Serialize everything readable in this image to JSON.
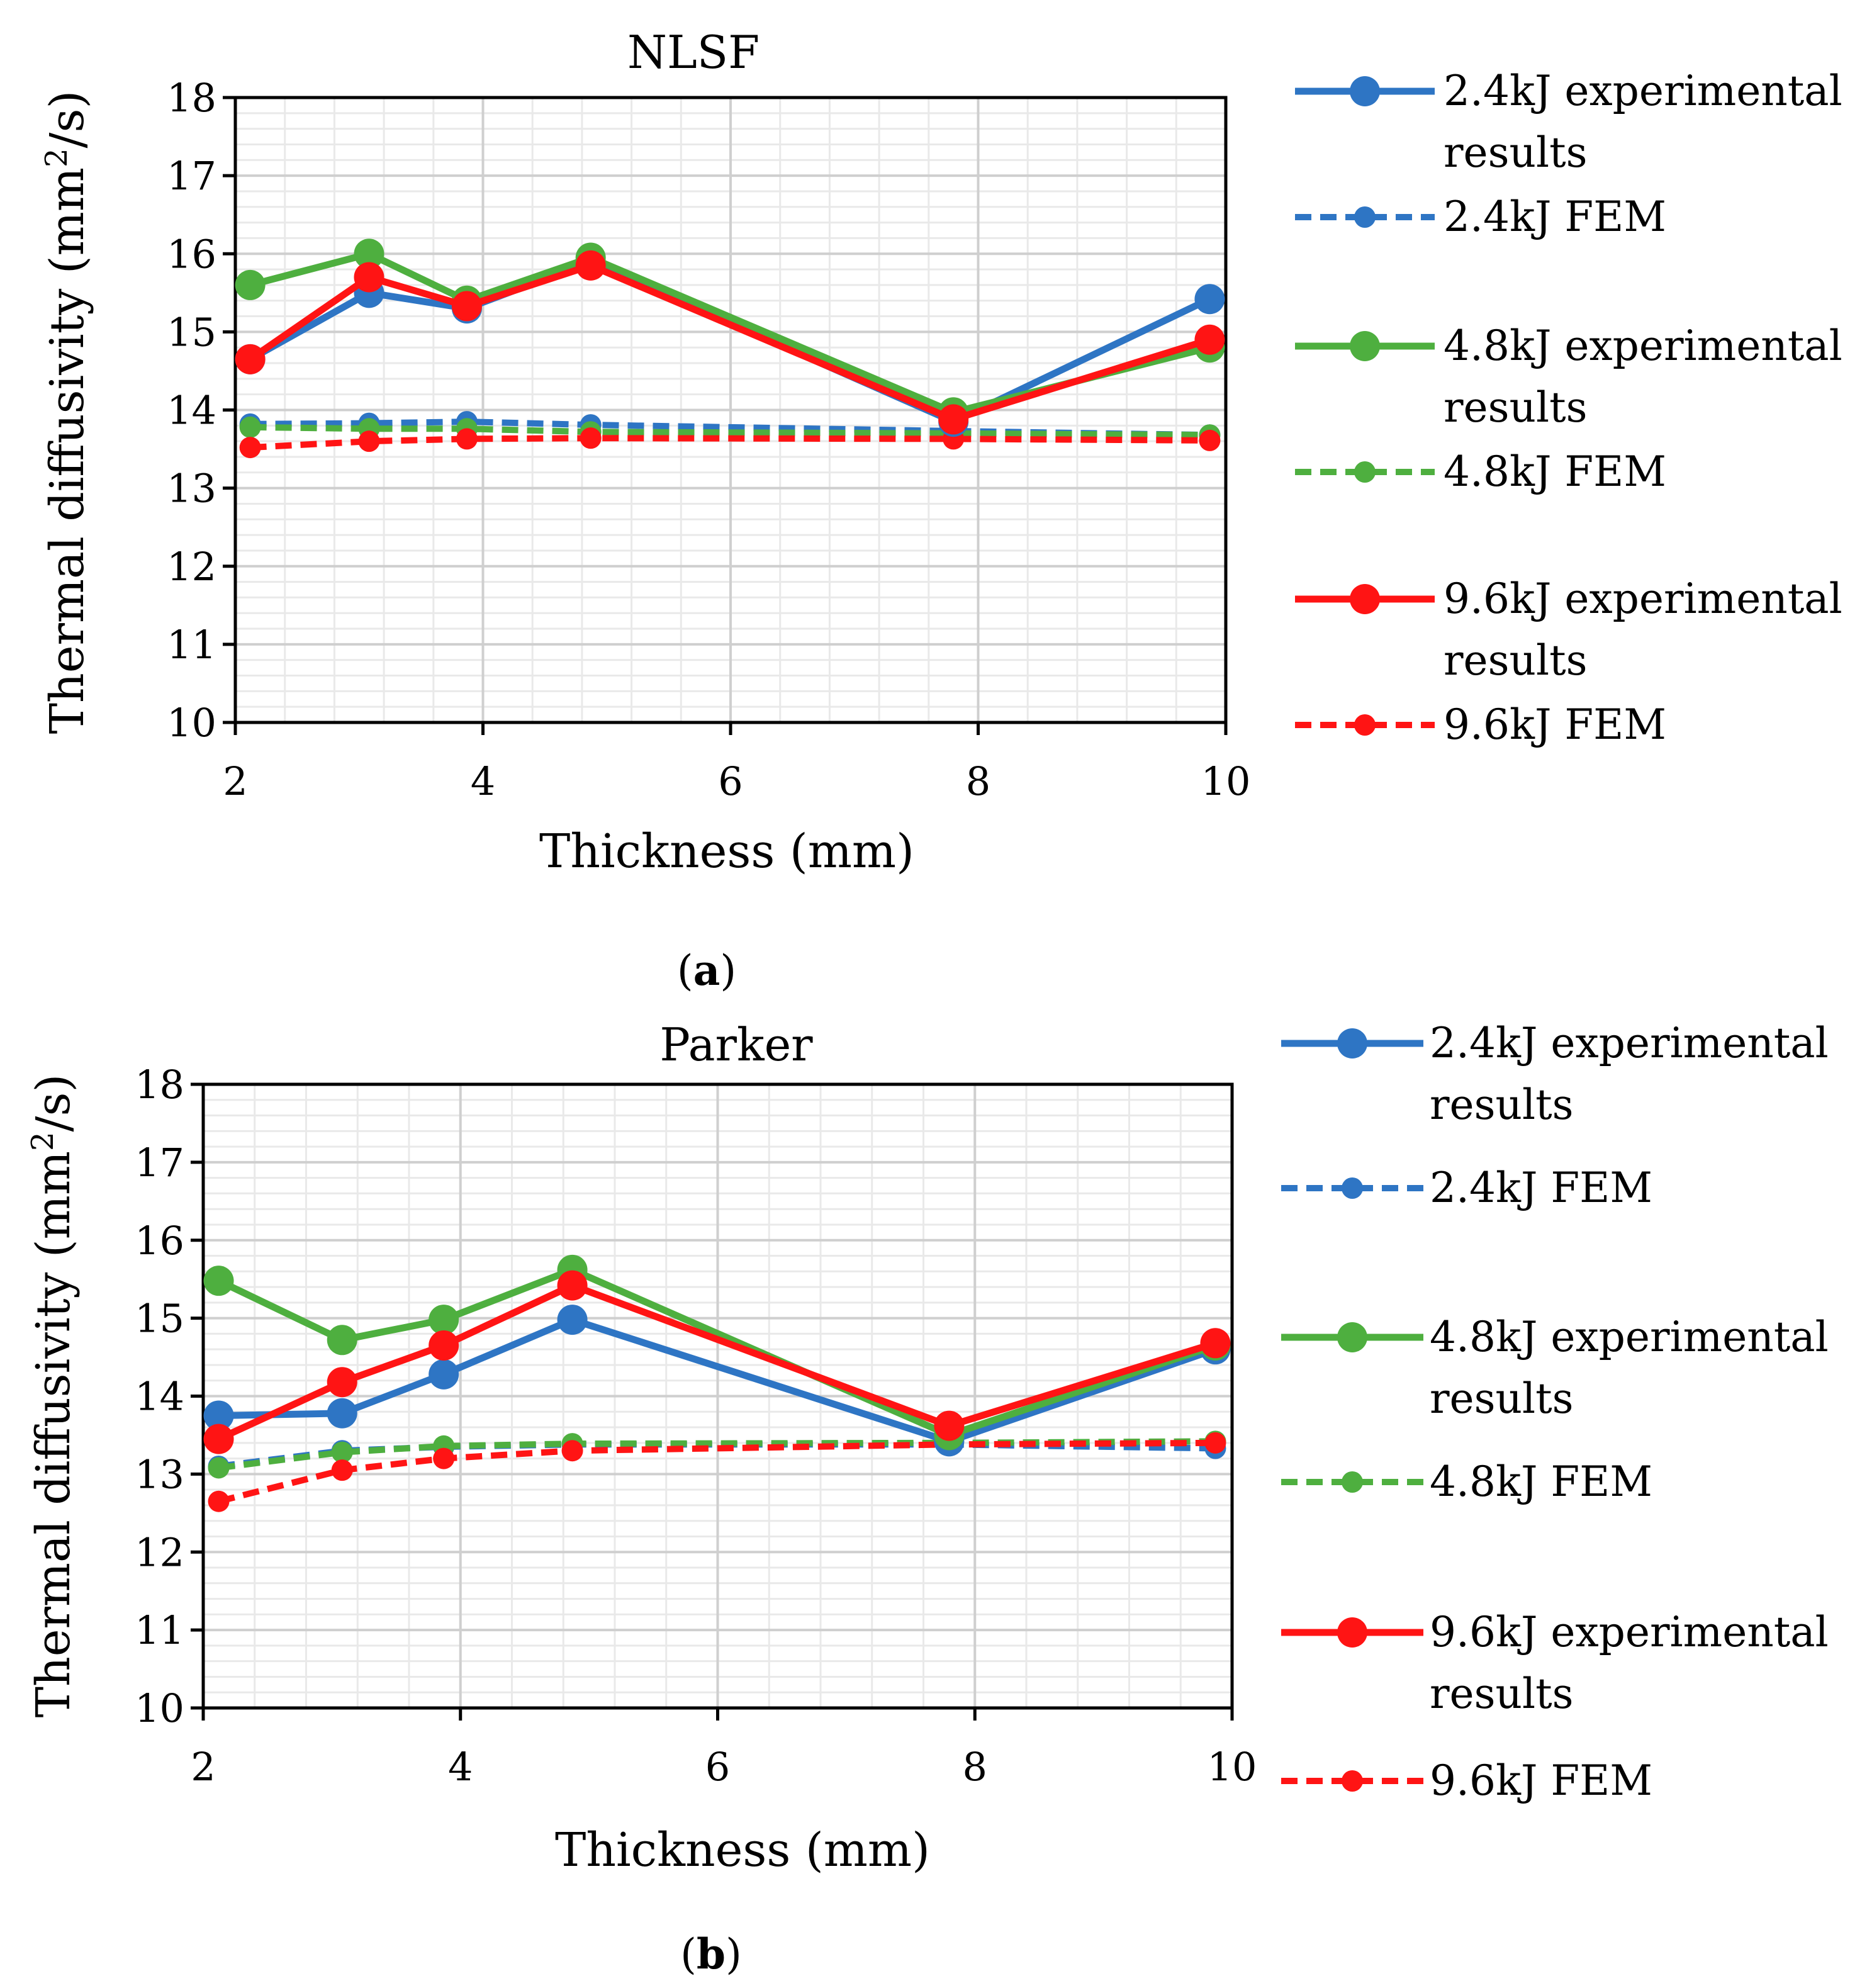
{
  "figure": {
    "caption_a_open": "(",
    "caption_a_letter": "a",
    "caption_a_close": ")",
    "caption_b_open": "(",
    "caption_b_letter": "b",
    "caption_b_close": ")"
  },
  "colors": {
    "blue": "#2E75C4",
    "green": "#4EAF3F",
    "red": "#FF1414",
    "major_grid": "#CFCFCF",
    "minor_grid": "#E9E9E9"
  },
  "chart_data": [
    {
      "type": "line",
      "panel": "a",
      "title": "NLSF",
      "xlabel": "Thickness (mm)",
      "ylabel_main": "Thermal diffusivity (mm",
      "ylabel_sup": "2",
      "ylabel_end": "/s)",
      "xlim": [
        2,
        10
      ],
      "ylim": [
        10,
        18
      ],
      "xticks": [
        "2",
        "4",
        "6",
        "8",
        "10"
      ],
      "yticks": [
        "10",
        "11",
        "12",
        "13",
        "14",
        "15",
        "16",
        "17",
        "18"
      ],
      "x": [
        2.12,
        3.08,
        3.87,
        4.87,
        7.8,
        9.87
      ],
      "series": [
        {
          "name": "2.4kJ experimental results",
          "label_l1": "2.4kJ experimental",
          "label_l2": "results",
          "color": "blue",
          "dashed": false,
          "values": [
            14.65,
            15.5,
            15.3,
            15.9,
            13.85,
            15.42
          ]
        },
        {
          "name": "2.4kJ FEM",
          "label_l1": "2.4kJ FEM",
          "label_l2": "",
          "color": "blue",
          "dashed": true,
          "values": [
            13.82,
            13.83,
            13.85,
            13.81,
            13.73,
            13.68
          ]
        },
        {
          "name": "4.8kJ experimental results",
          "label_l1": "4.8kJ experimental",
          "label_l2": "results",
          "color": "green",
          "dashed": false,
          "values": [
            15.6,
            16.0,
            15.4,
            15.95,
            13.97,
            14.8
          ]
        },
        {
          "name": "4.8kJ FEM",
          "label_l1": "4.8kJ FEM",
          "label_l2": "",
          "color": "green",
          "dashed": true,
          "values": [
            13.78,
            13.76,
            13.76,
            13.72,
            13.7,
            13.68
          ]
        },
        {
          "name": "9.6kJ experimental results",
          "label_l1": "9.6kJ experimental",
          "label_l2": "results",
          "color": "red",
          "dashed": false,
          "values": [
            14.65,
            15.7,
            15.33,
            15.85,
            13.88,
            14.9
          ]
        },
        {
          "name": "9.6kJ FEM",
          "label_l1": "9.6kJ FEM",
          "label_l2": "",
          "color": "red",
          "dashed": true,
          "values": [
            13.52,
            13.6,
            13.63,
            13.64,
            13.63,
            13.61
          ]
        }
      ]
    },
    {
      "type": "line",
      "panel": "b",
      "title": "Parker",
      "xlabel": "Thickness (mm)",
      "ylabel_main": "Thermal diffusivity (mm",
      "ylabel_sup": "2",
      "ylabel_end": "/s)",
      "xlim": [
        2,
        10
      ],
      "ylim": [
        10,
        18
      ],
      "xticks": [
        "2",
        "4",
        "6",
        "8",
        "10"
      ],
      "yticks": [
        "10",
        "11",
        "12",
        "13",
        "14",
        "15",
        "16",
        "17",
        "18"
      ],
      "x": [
        2.12,
        3.08,
        3.87,
        4.87,
        7.8,
        9.87
      ],
      "series": [
        {
          "name": "2.4kJ experimental results",
          "label_l1": "2.4kJ experimental",
          "label_l2": "results",
          "color": "blue",
          "dashed": false,
          "values": [
            13.75,
            13.78,
            14.28,
            14.98,
            13.42,
            14.6
          ]
        },
        {
          "name": "2.4kJ FEM",
          "label_l1": "2.4kJ FEM",
          "label_l2": "",
          "color": "blue",
          "dashed": true,
          "values": [
            13.1,
            13.3,
            13.35,
            13.38,
            13.38,
            13.33
          ]
        },
        {
          "name": "4.8kJ experimental results",
          "label_l1": "4.8kJ experimental",
          "label_l2": "results",
          "color": "green",
          "dashed": false,
          "values": [
            15.48,
            14.72,
            14.98,
            15.62,
            13.5,
            14.65
          ]
        },
        {
          "name": "4.8kJ FEM",
          "label_l1": "4.8kJ FEM",
          "label_l2": "",
          "color": "green",
          "dashed": true,
          "values": [
            13.08,
            13.28,
            13.36,
            13.39,
            13.4,
            13.42
          ]
        },
        {
          "name": "9.6kJ experimental results",
          "label_l1": "9.6kJ experimental",
          "label_l2": "results",
          "color": "red",
          "dashed": false,
          "values": [
            13.45,
            14.18,
            14.65,
            15.42,
            13.62,
            14.68
          ]
        },
        {
          "name": "9.6kJ FEM",
          "label_l1": "9.6kJ FEM",
          "label_l2": "",
          "color": "red",
          "dashed": true,
          "values": [
            12.65,
            13.05,
            13.2,
            13.3,
            13.38,
            13.4
          ]
        }
      ]
    }
  ]
}
